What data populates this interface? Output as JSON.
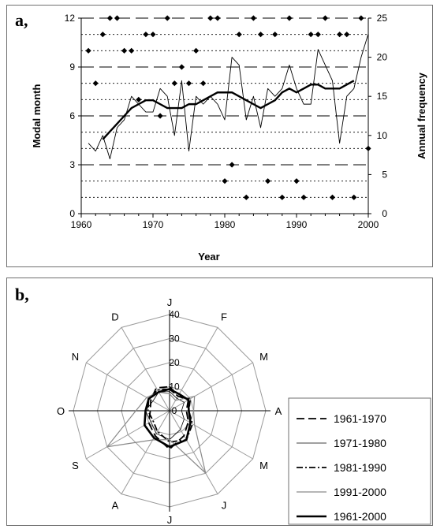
{
  "chart_data": [
    {
      "panel": "a,",
      "type": "line",
      "xlabel": "Year",
      "ylabel_left": "Modal month",
      "ylabel_right": "Annual frequency",
      "xlim": [
        1960,
        2000
      ],
      "ylim_left": [
        0,
        12
      ],
      "ylim_right": [
        0,
        25
      ],
      "x_ticks": [
        "1960",
        "1970",
        "1980",
        "1990",
        "2000"
      ],
      "y_left_ticks": [
        "0",
        "3",
        "6",
        "9",
        "12"
      ],
      "y_right_ticks": [
        "0",
        "5",
        "10",
        "15",
        "20",
        "25"
      ],
      "series": [
        {
          "style": "points",
          "axis": "left",
          "x": [
            1961,
            1962,
            1963,
            1964,
            1965,
            1966,
            1967,
            1968,
            1969,
            1970,
            1971,
            1972,
            1973,
            1974,
            1975,
            1976,
            1977,
            1978,
            1979,
            1980,
            1981,
            1982,
            1983,
            1984,
            1985,
            1986,
            1987,
            1988,
            1989,
            1990,
            1991,
            1992,
            1993,
            1994,
            1995,
            1996,
            1997,
            1998,
            1999,
            2000
          ],
          "y": [
            10,
            8,
            11,
            12,
            12,
            10,
            10,
            7,
            11,
            11,
            6,
            12,
            8,
            9,
            8,
            10,
            8,
            12,
            12,
            2,
            3,
            11,
            1,
            12,
            11,
            2,
            11,
            1,
            12,
            2,
            1,
            11,
            11,
            12,
            1,
            11,
            11,
            1,
            12,
            4
          ]
        },
        {
          "style": "thin-line",
          "axis": "right",
          "x": [
            1961,
            1962,
            1963,
            1964,
            1965,
            1966,
            1967,
            1968,
            1969,
            1970,
            1971,
            1972,
            1973,
            1974,
            1975,
            1976,
            1977,
            1978,
            1979,
            1980,
            1981,
            1982,
            1983,
            1984,
            1985,
            1986,
            1987,
            1988,
            1989,
            1990,
            1991,
            1992,
            1993,
            1994,
            1995,
            1996,
            1997,
            1998,
            1999,
            2000
          ],
          "y": [
            9,
            8,
            10,
            7,
            11,
            12,
            15,
            14,
            13,
            13,
            16,
            15,
            10,
            17,
            8,
            15,
            14,
            15,
            14,
            12,
            20,
            19,
            12,
            15,
            11,
            16,
            15,
            16,
            19,
            16,
            14,
            14,
            21,
            19,
            17,
            9,
            15,
            16,
            20,
            23
          ]
        },
        {
          "style": "thick-line",
          "axis": "right",
          "x": [
            1963,
            1964,
            1965,
            1966,
            1967,
            1968,
            1969,
            1970,
            1971,
            1972,
            1973,
            1974,
            1975,
            1976,
            1977,
            1978,
            1979,
            1980,
            1981,
            1982,
            1983,
            1984,
            1985,
            1986,
            1987,
            1988,
            1989,
            1990,
            1991,
            1992,
            1993,
            1994,
            1995,
            1996,
            1997,
            1998
          ],
          "y": [
            9.5,
            10.5,
            11.5,
            12.5,
            13.5,
            14,
            14.5,
            14.5,
            14,
            13.5,
            13.5,
            13.5,
            14,
            14,
            14.5,
            15,
            15.5,
            15.5,
            15.5,
            15,
            14.5,
            14,
            13.5,
            14,
            14.5,
            15.5,
            16,
            15.5,
            16,
            16.5,
            16.5,
            16,
            16,
            16,
            16.5,
            17
          ]
        }
      ]
    },
    {
      "panel": "b,",
      "type": "radar",
      "axes": [
        "J",
        "F",
        "M",
        "A",
        "M",
        "J",
        "J",
        "A",
        "S",
        "O",
        "N",
        "D"
      ],
      "rlim": [
        0,
        40
      ],
      "r_ticks": [
        "0",
        "10",
        "20",
        "30",
        "40"
      ],
      "legend_placement": "right",
      "series": [
        {
          "name": "1961-1970",
          "style": "long-dash",
          "values": [
            10,
            7,
            9,
            7,
            9,
            12,
            16,
            12,
            10,
            8,
            9,
            11
          ]
        },
        {
          "name": "1971-1980",
          "style": "thin-solid",
          "values": [
            8,
            6,
            7,
            5,
            7,
            9,
            12,
            11,
            9,
            10,
            8,
            9
          ]
        },
        {
          "name": "1981-1990",
          "style": "dash-dot",
          "values": [
            9,
            7,
            10,
            8,
            11,
            14,
            13,
            10,
            8,
            9,
            10,
            10
          ]
        },
        {
          "name": "1991-2000",
          "style": "grey-solid",
          "values": [
            7,
            5,
            12,
            10,
            12,
            30,
            12,
            14,
            30,
            14,
            11,
            9
          ]
        },
        {
          "name": "1961-2000",
          "style": "thick-solid",
          "values": [
            9,
            8,
            9,
            8,
            10,
            14,
            15,
            13,
            12,
            10,
            10,
            9
          ]
        }
      ]
    }
  ],
  "colors": {
    "frame": "#6f6f6f",
    "grid": "#9a9a9a",
    "line": "#000000",
    "grey_line": "#8a8a8a"
  }
}
